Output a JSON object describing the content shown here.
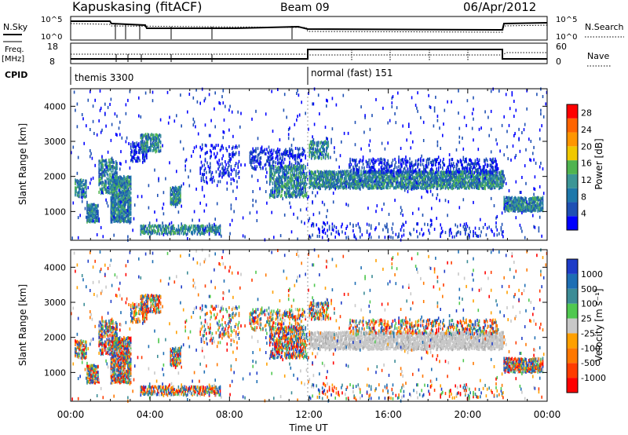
{
  "header": {
    "station": "Kapuskasing (fitACF)",
    "beam": "Beam 09",
    "date": "06/Apr/2012"
  },
  "summary_panels": {
    "nsky_label": "N.Sky",
    "nsky_ticks": [
      "10^5",
      "10^0"
    ],
    "nsearch_label": "N.Search",
    "nsearch_ticks": [
      "10^5",
      "10^0"
    ],
    "freq_label": "Freq.",
    "freq_unit": "[MHz]",
    "freq_ticks": [
      "18",
      "8"
    ],
    "nave_label": "Nave",
    "nave_ticks": [
      "60",
      "0"
    ],
    "cpid_label": "CPID",
    "cpid_segments": [
      {
        "label": "themis 3300",
        "start_hour": 0,
        "end_hour": 11.9
      },
      {
        "label": "normal (fast) 151",
        "start_hour": 11.9,
        "end_hour": 24
      }
    ]
  },
  "chart_data": [
    {
      "type": "heatmap",
      "name": "power",
      "ylabel": "Slant Range [km]",
      "xlabel": "",
      "ylim": [
        180,
        4500
      ],
      "xlim": [
        0,
        24
      ],
      "yticks": [
        "1000",
        "2000",
        "3000",
        "4000"
      ],
      "colorbar": {
        "label": "Power [dB]",
        "ticks": [
          "4",
          "8",
          "12",
          "16",
          "20",
          "24",
          "28"
        ],
        "range": [
          0,
          30
        ],
        "colors": [
          "#0000ff",
          "#1e50b4",
          "#1e78aa",
          "#3c9696",
          "#50b450",
          "#f0c800",
          "#ff9600",
          "#ff6400",
          "#ff0000"
        ]
      }
    },
    {
      "type": "heatmap",
      "name": "velocity",
      "ylabel": "Slant Range [km]",
      "xlabel": "Time UT",
      "ylim": [
        180,
        4500
      ],
      "xlim": [
        0,
        24
      ],
      "yticks": [
        "1000",
        "2000",
        "3000",
        "4000"
      ],
      "xticks": [
        "00:00",
        "04:00",
        "08:00",
        "12:00",
        "16:00",
        "20:00",
        "00:00"
      ],
      "colorbar": {
        "label": "Velocity [m s⁻¹]",
        "ticks": [
          "1000",
          "500",
          "100",
          "25",
          "-25",
          "-100",
          "-500",
          "-1000"
        ],
        "colors": [
          "#1e3cc8",
          "#1e6eb4",
          "#3c8c96",
          "#50c850",
          "#c8c8c8",
          "#ffa000",
          "#ff7800",
          "#ff3c00",
          "#ff0000"
        ]
      }
    }
  ],
  "scatter_bands": [
    {
      "start": 0.2,
      "end": 0.8,
      "range_lo": 1400,
      "range_hi": 1900,
      "density": 0.6
    },
    {
      "start": 0.8,
      "end": 1.4,
      "range_lo": 700,
      "range_hi": 1200,
      "density": 0.8
    },
    {
      "start": 1.4,
      "end": 2.3,
      "range_lo": 1500,
      "range_hi": 2500,
      "density": 0.5
    },
    {
      "start": 2.0,
      "end": 3.0,
      "range_lo": 700,
      "range_hi": 2000,
      "density": 0.8
    },
    {
      "start": 3.0,
      "end": 3.8,
      "range_lo": 2400,
      "range_hi": 3000,
      "density": 0.4
    },
    {
      "start": 3.5,
      "end": 4.5,
      "range_lo": 2700,
      "range_hi": 3200,
      "density": 0.6
    },
    {
      "start": 5.0,
      "end": 5.5,
      "range_lo": 1200,
      "range_hi": 1700,
      "density": 0.8
    },
    {
      "start": 3.5,
      "end": 7.5,
      "range_lo": 350,
      "range_hi": 600,
      "density": 0.5
    },
    {
      "start": 6.5,
      "end": 8.5,
      "range_lo": 1800,
      "range_hi": 2900,
      "density": 0.15
    },
    {
      "start": 9.0,
      "end": 11.8,
      "range_lo": 2200,
      "range_hi": 2800,
      "density": 0.3
    },
    {
      "start": 10.0,
      "end": 11.9,
      "range_lo": 1400,
      "range_hi": 2300,
      "density": 0.5
    },
    {
      "start": 12.0,
      "end": 13.0,
      "range_lo": 2500,
      "range_hi": 3000,
      "density": 0.5
    },
    {
      "start": 12.0,
      "end": 21.8,
      "range_lo": 1650,
      "range_hi": 2150,
      "density": 0.7
    },
    {
      "start": 14.0,
      "end": 21.5,
      "range_lo": 2100,
      "range_hi": 2500,
      "density": 0.3
    },
    {
      "start": 12.0,
      "end": 21.8,
      "range_lo": 250,
      "range_hi": 650,
      "density": 0.1
    },
    {
      "start": 21.8,
      "end": 23.8,
      "range_lo": 1000,
      "range_hi": 1400,
      "density": 0.8
    },
    {
      "start": 0.0,
      "end": 24.0,
      "range_lo": 180,
      "range_hi": 4500,
      "density": 0.015
    }
  ]
}
